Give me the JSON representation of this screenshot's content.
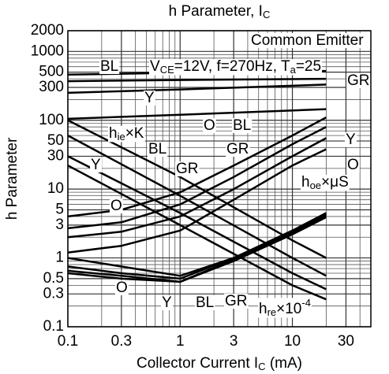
{
  "chart_data": {
    "type": "line",
    "title": [
      {
        "t": "h Parameter, I"
      },
      {
        "sub": "C"
      }
    ],
    "x_label": [
      {
        "t": "Collector Current I"
      },
      {
        "sub": "C"
      },
      {
        "t": " (mA)"
      }
    ],
    "y_label": "h Parameter",
    "xscale": "log",
    "yscale": "log",
    "xlim": [
      0.1,
      50
    ],
    "ylim": [
      0.1,
      2000
    ],
    "xticks": [
      0.1,
      0.3,
      1,
      3,
      10,
      30
    ],
    "yticks": [
      0.1,
      0.3,
      0.5,
      1,
      3,
      5,
      10,
      30,
      50,
      100,
      300,
      500,
      1000,
      2000
    ],
    "xminor": [
      0.2,
      0.4,
      0.5,
      0.6,
      0.7,
      0.8,
      0.9,
      2,
      4,
      5,
      6,
      7,
      8,
      9,
      20,
      40,
      50
    ],
    "yminor": [
      0.2,
      0.4,
      0.6,
      0.7,
      0.8,
      0.9,
      2,
      4,
      6,
      7,
      8,
      9,
      20,
      40,
      60,
      70,
      80,
      90,
      200,
      400,
      600,
      700,
      800,
      900
    ],
    "grid": true,
    "color": "#000000",
    "series": [
      {
        "x": [
          0.1,
          1,
          20
        ],
        "values": [
          460,
          490,
          520
        ]
      },
      {
        "x": [
          0.1,
          1,
          20
        ],
        "values": [
          370,
          385,
          400
        ]
      },
      {
        "x": [
          0.1,
          1,
          20
        ],
        "values": [
          250,
          280,
          330
        ]
      },
      {
        "x": [
          0.1,
          1,
          20
        ],
        "values": [
          105,
          120,
          145
        ]
      },
      {
        "x": [
          0.1,
          1,
          10,
          20
        ],
        "values": [
          100,
          15,
          1.8,
          1.0
        ]
      },
      {
        "x": [
          0.1,
          1,
          10,
          20
        ],
        "values": [
          60,
          8,
          1.0,
          0.55
        ]
      },
      {
        "x": [
          0.1,
          1,
          10,
          20
        ],
        "values": [
          30,
          4.5,
          0.6,
          0.35
        ]
      },
      {
        "x": [
          0.1,
          1,
          10,
          20
        ],
        "values": [
          22,
          3,
          0.4,
          0.25
        ]
      },
      {
        "x": [
          0.1,
          0.3,
          1,
          3,
          10,
          20
        ],
        "values": [
          4,
          5,
          9,
          22,
          60,
          110
        ]
      },
      {
        "x": [
          0.1,
          0.3,
          1,
          3,
          10,
          20
        ],
        "values": [
          2.7,
          3.3,
          6,
          15,
          45,
          80
        ]
      },
      {
        "x": [
          0.1,
          0.3,
          1,
          3,
          10,
          20
        ],
        "values": [
          2,
          2.4,
          4,
          10,
          30,
          55
        ]
      },
      {
        "x": [
          0.1,
          0.3,
          1,
          3,
          10,
          20
        ],
        "values": [
          1.2,
          1.5,
          2.5,
          7,
          22,
          38
        ]
      },
      {
        "x": [
          0.1,
          0.3,
          1,
          3,
          10,
          20
        ],
        "values": [
          1.0,
          0.75,
          0.55,
          1.0,
          2.5,
          4.5
        ]
      },
      {
        "x": [
          0.1,
          0.3,
          1,
          3,
          10,
          20
        ],
        "values": [
          0.75,
          0.6,
          0.5,
          1.0,
          2.4,
          4.3
        ]
      },
      {
        "x": [
          0.1,
          0.3,
          1,
          3,
          10,
          20
        ],
        "values": [
          0.65,
          0.55,
          0.45,
          0.95,
          2.3,
          4.1
        ]
      },
      {
        "x": [
          0.1,
          0.3,
          1,
          3,
          10,
          20
        ],
        "values": [
          0.6,
          0.5,
          0.45,
          0.9,
          2.2,
          3.9
        ]
      }
    ],
    "annotations": [
      [
        {
          "t": "Common Emitter"
        }
      ],
      [
        {
          "t": "BL"
        }
      ],
      [
        {
          "t": "V"
        },
        {
          "sub": "CE"
        },
        {
          "t": "=12V, f=270Hz, T"
        },
        {
          "sub": "a"
        },
        {
          "t": "=25"
        }
      ],
      [
        {
          "t": "GR"
        }
      ],
      [
        {
          "t": "Y"
        }
      ],
      [
        {
          "t": "O"
        }
      ],
      [
        {
          "t": "BL"
        }
      ],
      [
        {
          "t": "h"
        },
        {
          "sub": "ie"
        },
        {
          "t": "×K"
        }
      ],
      [
        {
          "t": "BL"
        }
      ],
      [
        {
          "t": "GR"
        }
      ],
      [
        {
          "t": "Y"
        }
      ],
      [
        {
          "t": "Y"
        }
      ],
      [
        {
          "t": "GR"
        }
      ],
      [
        {
          "t": "O"
        }
      ],
      [
        {
          "t": "h"
        },
        {
          "sub": "oe"
        },
        {
          "t": "×μS"
        }
      ],
      [
        {
          "t": "O"
        }
      ],
      [
        {
          "t": "O"
        }
      ],
      [
        {
          "t": "Y"
        }
      ],
      [
        {
          "t": "BL"
        }
      ],
      [
        {
          "t": "GR"
        }
      ],
      [
        {
          "t": "h"
        },
        {
          "sub": "re"
        },
        {
          "t": "×10"
        },
        {
          "sup": "-4"
        }
      ]
    ]
  }
}
